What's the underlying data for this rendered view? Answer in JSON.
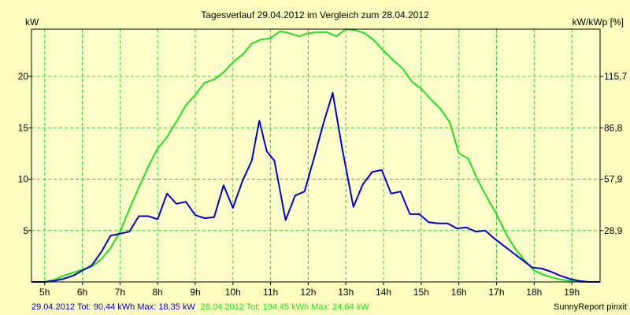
{
  "chart_data": {
    "type": "line",
    "title": "Tagesverlauf 29.04.2012 im Vergleich zum 28.04.2012",
    "ylabel_left": "kW",
    "ylabel_right": "kW/kWp [%]",
    "x_tick_labels": [
      "5h",
      "6h",
      "7h",
      "8h",
      "9h",
      "10h",
      "11h",
      "12h",
      "13h",
      "14h",
      "15h",
      "16h",
      "17h",
      "18h",
      "19h"
    ],
    "x_tick_values": [
      5,
      6,
      7,
      8,
      9,
      10,
      11,
      12,
      13,
      14,
      15,
      16,
      17,
      18,
      19
    ],
    "xlim": [
      4.65,
      19.75
    ],
    "ylim": [
      0,
      24.6
    ],
    "y_ticks_left": [
      5,
      10,
      15,
      20
    ],
    "y_ticks_right_labels": [
      "28,9",
      "57,9",
      "86,8",
      "115,7"
    ],
    "grid": true,
    "colors": {
      "background": "#ffffc0",
      "plot_background": "#ffffcc",
      "grid": "#33cc33",
      "axis": "#000000"
    },
    "series": [
      {
        "color": "#0000cc",
        "x": [
          4.65,
          5.0,
          5.25,
          5.5,
          5.75,
          6.0,
          6.25,
          6.5,
          6.75,
          7.0,
          7.25,
          7.5,
          7.75,
          8.0,
          8.25,
          8.5,
          8.75,
          9.0,
          9.25,
          9.5,
          9.75,
          10.0,
          10.25,
          10.5,
          10.7,
          10.9,
          11.1,
          11.4,
          11.65,
          11.9,
          12.15,
          12.4,
          12.65,
          12.9,
          13.2,
          13.45,
          13.7,
          13.95,
          14.2,
          14.45,
          14.7,
          14.95,
          15.2,
          15.45,
          15.7,
          15.95,
          16.2,
          16.45,
          16.7,
          16.95,
          17.2,
          17.45,
          17.7,
          17.95,
          18.2,
          18.45,
          18.7,
          18.95,
          19.2,
          19.45,
          19.75
        ],
        "y": [
          0,
          0,
          0.1,
          0.3,
          0.6,
          1.1,
          1.6,
          2.9,
          4.5,
          4.7,
          4.9,
          6.4,
          6.4,
          6.1,
          8.6,
          7.6,
          7.8,
          6.5,
          6.2,
          6.3,
          9.4,
          7.2,
          9.8,
          11.8,
          15.7,
          12.7,
          11.8,
          6.0,
          8.4,
          8.8,
          12.0,
          15.4,
          18.4,
          13.0,
          7.3,
          9.5,
          10.7,
          10.9,
          8.6,
          8.8,
          6.6,
          6.6,
          5.8,
          5.7,
          5.7,
          5.2,
          5.3,
          4.9,
          5.0,
          4.2,
          3.5,
          2.8,
          2.1,
          1.4,
          1.3,
          1.0,
          0.6,
          0.3,
          0.1,
          0,
          0
        ]
      },
      {
        "color": "#22dd22",
        "x": [
          4.65,
          5.0,
          5.25,
          5.5,
          5.75,
          6.0,
          6.25,
          6.5,
          6.75,
          7.0,
          7.25,
          7.5,
          7.75,
          8.0,
          8.25,
          8.5,
          8.75,
          9.0,
          9.25,
          9.5,
          9.75,
          10.0,
          10.25,
          10.5,
          10.75,
          11.0,
          11.25,
          11.5,
          11.75,
          12.0,
          12.25,
          12.5,
          12.75,
          13.0,
          13.25,
          13.5,
          13.75,
          14.0,
          14.25,
          14.5,
          14.75,
          15.0,
          15.25,
          15.5,
          15.75,
          16.0,
          16.25,
          16.5,
          16.75,
          17.0,
          17.25,
          17.5,
          17.75,
          18.0,
          18.25,
          18.5,
          18.75,
          19.0,
          19.25,
          19.5,
          19.75
        ],
        "y": [
          0,
          0,
          0.2,
          0.6,
          0.9,
          1.2,
          1.5,
          2.2,
          3.3,
          4.9,
          7.1,
          9.2,
          11.2,
          13.0,
          14.1,
          15.6,
          17.2,
          18.2,
          19.4,
          19.7,
          20.4,
          21.4,
          22.1,
          23.2,
          23.6,
          23.7,
          24.4,
          24.2,
          23.9,
          24.2,
          24.3,
          24.3,
          23.9,
          24.6,
          24.5,
          24.2,
          23.5,
          22.5,
          21.6,
          20.8,
          19.5,
          18.8,
          17.8,
          16.9,
          15.6,
          12.5,
          12.0,
          9.9,
          8.2,
          6.6,
          4.7,
          3.2,
          2.1,
          1.1,
          0.7,
          0.4,
          0.2,
          0.1,
          0,
          0,
          0
        ]
      }
    ]
  },
  "footer": {
    "series1_text": "29.04.2012 Tot: 90,44 kWh Max: 18,35 kW",
    "series2_text": "28.04.2012 Tot: 194,45 kWh Max: 24,64 kW",
    "credit": "SunnyReport pinxit"
  }
}
